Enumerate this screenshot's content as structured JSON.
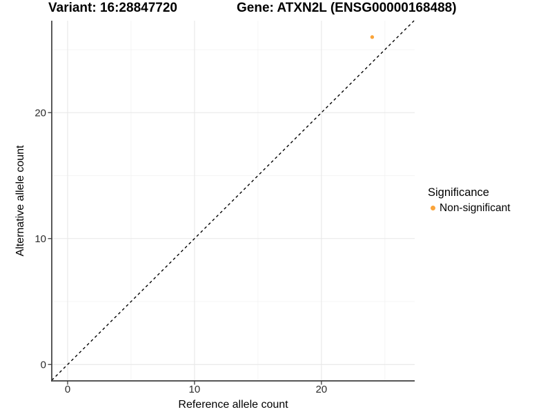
{
  "titles": {
    "variant": "Variant: 16:28847720",
    "gene": "Gene: ATXN2L (ENSG00000168488)"
  },
  "axes": {
    "x_label": "Reference allele count",
    "y_label": "Alternative allele count"
  },
  "legend": {
    "title": "Significance",
    "position": "right",
    "items": [
      {
        "label": "Non-significant",
        "color": "#FAA43A"
      }
    ]
  },
  "colors": {
    "point": "#FAA43A",
    "grid_major": "#E7E7E7",
    "grid_minor": "#F2F2F2",
    "axis": "#3C3C3C",
    "tick_text": "#2B2B2B",
    "reference_line": "#000000",
    "background": "#FFFFFF"
  },
  "chart_data": {
    "type": "scatter",
    "title_left": "Variant: 16:28847720",
    "title_right": "Gene: ATXN2L (ENSG00000168488)",
    "xlabel": "Reference allele count",
    "ylabel": "Alternative allele count",
    "points": [
      {
        "x": 24,
        "y": 26,
        "series": "Non-significant"
      }
    ],
    "reference_line": {
      "slope": 1,
      "intercept": 0,
      "style": "dashed"
    },
    "x_ticks": [
      0,
      10,
      20
    ],
    "y_ticks": [
      0,
      10,
      20
    ],
    "x_minor_ticks": [
      5,
      15,
      25
    ],
    "y_minor_ticks": [
      5,
      15,
      25
    ],
    "xlim": [
      -1.25,
      27.35
    ],
    "ylim": [
      -1.3,
      27.3
    ],
    "grid": true,
    "legend_position": "right",
    "legend_title": "Significance",
    "legend_entries": [
      "Non-significant"
    ]
  }
}
